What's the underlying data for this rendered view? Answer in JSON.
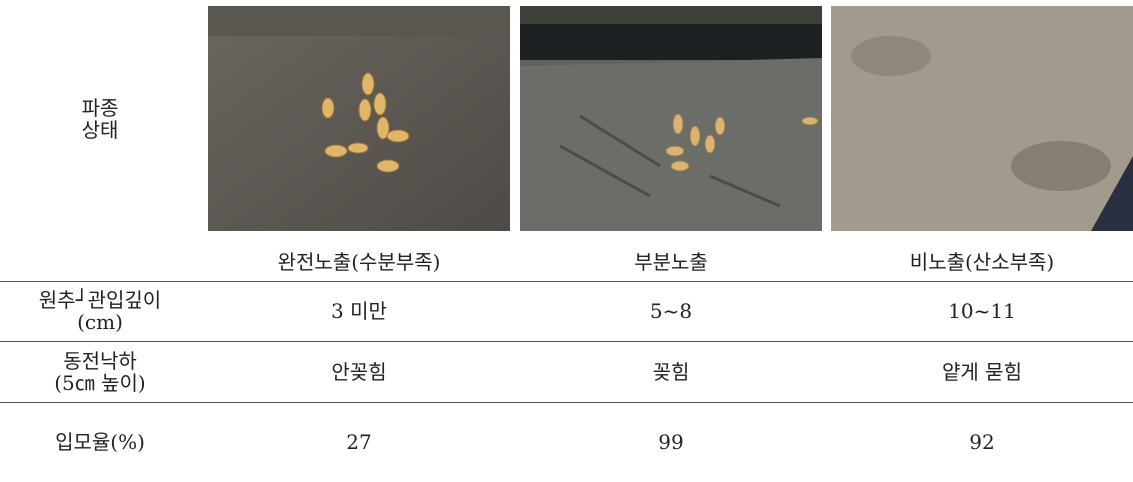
{
  "table": {
    "photo_row_label": [
      "파종",
      "상태"
    ],
    "captions": [
      "완전노출(수분부족)",
      "부분노출",
      "비노출(산소부족)"
    ],
    "rows": [
      {
        "label": [
          "원추┘관입깊이",
          "(cm)"
        ],
        "cells": [
          "3 미만",
          "5~8",
          "10~11"
        ]
      },
      {
        "label": [
          "동전낙하",
          "(5㎝ 높이)"
        ],
        "cells": [
          "안꽂힘",
          "꽂힘",
          "얕게 묻힘"
        ]
      },
      {
        "label": [
          "입모율(%)"
        ],
        "cells": [
          "27",
          "99",
          "92"
        ]
      }
    ]
  }
}
